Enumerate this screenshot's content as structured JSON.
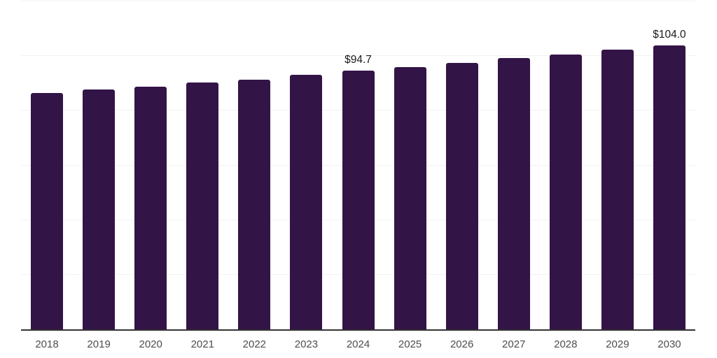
{
  "chart_data": {
    "type": "bar",
    "title": "",
    "xlabel": "",
    "ylabel": "",
    "categories": [
      "2018",
      "2019",
      "2020",
      "2021",
      "2022",
      "2023",
      "2024",
      "2025",
      "2026",
      "2027",
      "2028",
      "2029",
      "2030"
    ],
    "values": [
      86.5,
      87.7,
      88.8,
      90.3,
      91.4,
      93.1,
      94.7,
      96.0,
      97.5,
      99.2,
      100.5,
      102.4,
      104.0
    ],
    "value_labels": {
      "2024": "$94.7",
      "2030": "$104.0"
    },
    "ylim": [
      0,
      120
    ],
    "gridline_values": [
      20,
      40,
      60,
      80,
      100,
      120
    ],
    "grid": "horizontal-only",
    "legend": "none",
    "bar_corner_radius_px": 3,
    "styles": {
      "bar_color": "#331447",
      "grid_color": "#f2f2f2",
      "axis_color": "#333333",
      "tick_label_color": "#4d4d4d",
      "value_label_color": "#1a1a1a",
      "background_color": "#ffffff"
    }
  }
}
